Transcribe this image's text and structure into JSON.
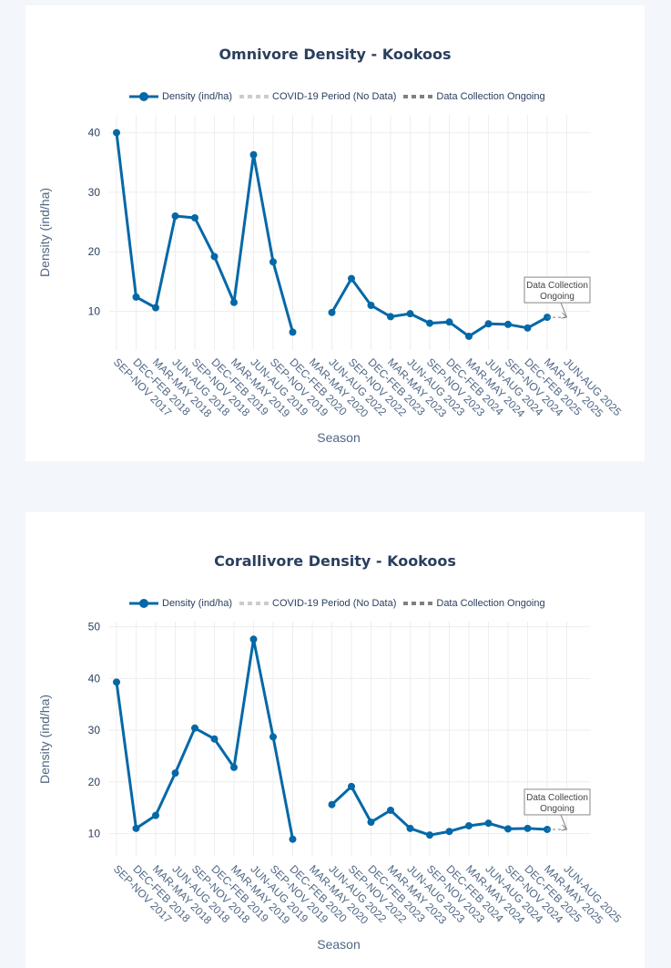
{
  "legend": {
    "density": "Density (ind/ha)",
    "covid": "COVID-19 Period (No Data)",
    "ongoing": "Data Collection Ongoing"
  },
  "colors": {
    "series": "#0468a7",
    "covid": "#cccccc",
    "ongoing": "#808080",
    "grid": "#eeeeee"
  },
  "chart_data": [
    {
      "type": "line",
      "title": "Omnivore Density - Kookoos",
      "xlabel": "Season",
      "ylabel": "Density (ind/ha)",
      "categories": [
        "SEP-NOV 2017",
        "DEC-FEB 2018",
        "MAR-MAY 2018",
        "JUN-AUG 2018",
        "SEP-NOV 2018",
        "DEC-FEB 2019",
        "MAR-MAY 2019",
        "JUN-AUG 2019",
        "SEP-NOV 2019",
        "DEC-FEB 2020",
        "MAR-MAY 2020",
        "JUN-AUG 2022",
        "SEP-NOV 2022",
        "DEC-FEB 2023",
        "MAR-MAY 2023",
        "JUN-AUG 2023",
        "SEP-NOV 2023",
        "DEC-FEB 2024",
        "MAR-MAY 2024",
        "JUN-AUG 2024",
        "SEP-NOV 2024",
        "DEC-FEB 2025",
        "MAR-MAY 2025",
        "JUN-AUG 2025"
      ],
      "series": [
        {
          "name": "Density (ind/ha)",
          "values": [
            40.0,
            12.4,
            10.6,
            26.0,
            25.7,
            19.2,
            11.5,
            36.3,
            18.3,
            6.5,
            null,
            9.8,
            15.5,
            11.0,
            9.1,
            9.6,
            8.0,
            8.2,
            5.8,
            7.9,
            7.8,
            7.2,
            9.0,
            null
          ]
        }
      ],
      "ylim": [
        3.5,
        43
      ],
      "yticks": [
        10,
        20,
        30,
        40
      ],
      "grid": true,
      "legend_position": "top",
      "annotation": "Data Collection Ongoing"
    },
    {
      "type": "line",
      "title": "Corallivore Density - Kookoos",
      "xlabel": "Season",
      "ylabel": "Density (ind/ha)",
      "categories": [
        "SEP-NOV 2017",
        "DEC-FEB 2018",
        "MAR-MAY 2018",
        "JUN-AUG 2018",
        "SEP-NOV 2018",
        "DEC-FEB 2019",
        "MAR-MAY 2019",
        "JUN-AUG 2019",
        "SEP-NOV 2019",
        "DEC-FEB 2020",
        "MAR-MAY 2020",
        "JUN-AUG 2022",
        "SEP-NOV 2022",
        "DEC-FEB 2023",
        "MAR-MAY 2023",
        "JUN-AUG 2023",
        "SEP-NOV 2023",
        "DEC-FEB 2024",
        "MAR-MAY 2024",
        "JUN-AUG 2024",
        "SEP-NOV 2024",
        "DEC-FEB 2025",
        "MAR-MAY 2025",
        "JUN-AUG 2025"
      ],
      "series": [
        {
          "name": "Density (ind/ha)",
          "values": [
            39.3,
            11.0,
            13.5,
            21.7,
            30.4,
            28.3,
            22.8,
            47.6,
            28.7,
            8.9,
            null,
            15.6,
            19.1,
            12.2,
            14.5,
            11.0,
            9.7,
            10.4,
            11.5,
            12.0,
            10.9,
            11.0,
            10.8,
            null
          ]
        }
      ],
      "ylim": [
        5.5,
        51
      ],
      "yticks": [
        10,
        20,
        30,
        40,
        50
      ],
      "grid": true,
      "legend_position": "top",
      "annotation": "Data Collection Ongoing"
    }
  ]
}
